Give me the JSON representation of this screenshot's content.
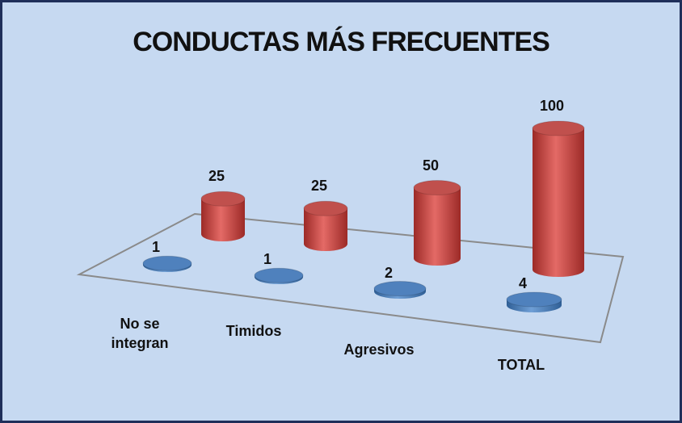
{
  "chart_data": {
    "type": "cylinder3d",
    "title": "CONDUCTAS MÁS FRECUENTES",
    "categories": [
      "No se integran",
      "Timidos",
      "Agresivos",
      "TOTAL"
    ],
    "series": [
      {
        "color": "#c0504d",
        "values": [
          25,
          25,
          50,
          100
        ]
      },
      {
        "color": "#4f81bd",
        "values": [
          1,
          1,
          2,
          4
        ]
      }
    ]
  }
}
